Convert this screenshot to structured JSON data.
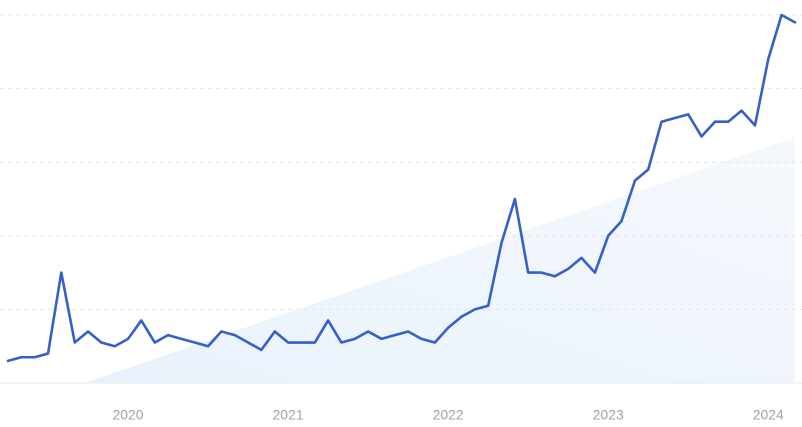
{
  "chart_data": {
    "type": "line",
    "x": [
      2019.25,
      2019.333,
      2019.417,
      2019.5,
      2019.583,
      2019.667,
      2019.75,
      2019.833,
      2019.917,
      2020,
      2020.083,
      2020.167,
      2020.25,
      2020.333,
      2020.417,
      2020.5,
      2020.583,
      2020.667,
      2020.75,
      2020.833,
      2020.917,
      2021,
      2021.083,
      2021.167,
      2021.25,
      2021.333,
      2021.417,
      2021.5,
      2021.583,
      2021.667,
      2021.75,
      2021.833,
      2021.917,
      2022,
      2022.083,
      2022.167,
      2022.25,
      2022.333,
      2022.417,
      2022.5,
      2022.583,
      2022.667,
      2022.75,
      2022.833,
      2022.917,
      2023,
      2023.083,
      2023.167,
      2023.25,
      2023.333,
      2023.417,
      2023.5,
      2023.583,
      2023.667,
      2023.75,
      2023.833,
      2023.917,
      2024,
      2024.083,
      2024.167
    ],
    "series": [
      {
        "color": "#3460cc",
        "values": [
          6,
          7,
          7,
          8,
          30,
          11,
          14,
          11,
          10,
          12,
          17,
          11,
          13,
          12,
          11,
          10,
          14,
          13,
          11,
          9,
          14,
          11,
          11,
          11,
          17,
          11,
          12,
          14,
          12,
          13,
          14,
          12,
          11,
          15,
          18,
          20,
          21,
          38,
          50,
          30,
          30,
          29,
          31,
          34,
          30,
          40,
          44,
          55,
          58,
          71,
          72,
          73,
          67,
          71,
          71,
          74,
          70,
          88,
          100,
          98
        ]
      }
    ],
    "xlim": [
      2019.25,
      2024.167
    ],
    "xticks": [
      2020,
      2021,
      2022,
      2023,
      2024
    ],
    "ylim": [
      0,
      100
    ],
    "yticks": [
      0,
      20,
      40,
      60,
      80,
      100
    ],
    "grid": true
  }
}
